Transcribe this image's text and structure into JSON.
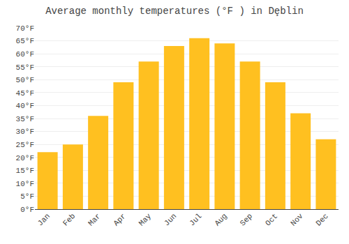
{
  "chart_data": {
    "type": "bar",
    "title": "Average monthly temperatures (°F ) in Dȩblin",
    "categories": [
      "Jan",
      "Feb",
      "Mar",
      "Apr",
      "May",
      "Jun",
      "Jul",
      "Aug",
      "Sep",
      "Oct",
      "Nov",
      "Dec"
    ],
    "values": [
      22,
      25,
      36,
      49,
      57,
      63,
      66,
      64,
      57,
      49,
      37,
      27
    ],
    "color": "#FFC020",
    "ylim": [
      0,
      70
    ],
    "yticks": [
      {
        "value": 0,
        "label": "0°F"
      },
      {
        "value": 5,
        "label": "5°F"
      },
      {
        "value": 10,
        "label": "10°F"
      },
      {
        "value": 15,
        "label": "15°F"
      },
      {
        "value": 20,
        "label": "20°F"
      },
      {
        "value": 25,
        "label": "25°F"
      },
      {
        "value": 30,
        "label": "30°F"
      },
      {
        "value": 35,
        "label": "35°F"
      },
      {
        "value": 40,
        "label": "40°F"
      },
      {
        "value": 45,
        "label": "45°F"
      },
      {
        "value": 50,
        "label": "50°F"
      },
      {
        "value": 55,
        "label": "55°F"
      },
      {
        "value": 60,
        "label": "60°F"
      },
      {
        "value": 65,
        "label": "65°F"
      },
      {
        "value": 70,
        "label": "70°F"
      }
    ],
    "grid": true
  }
}
